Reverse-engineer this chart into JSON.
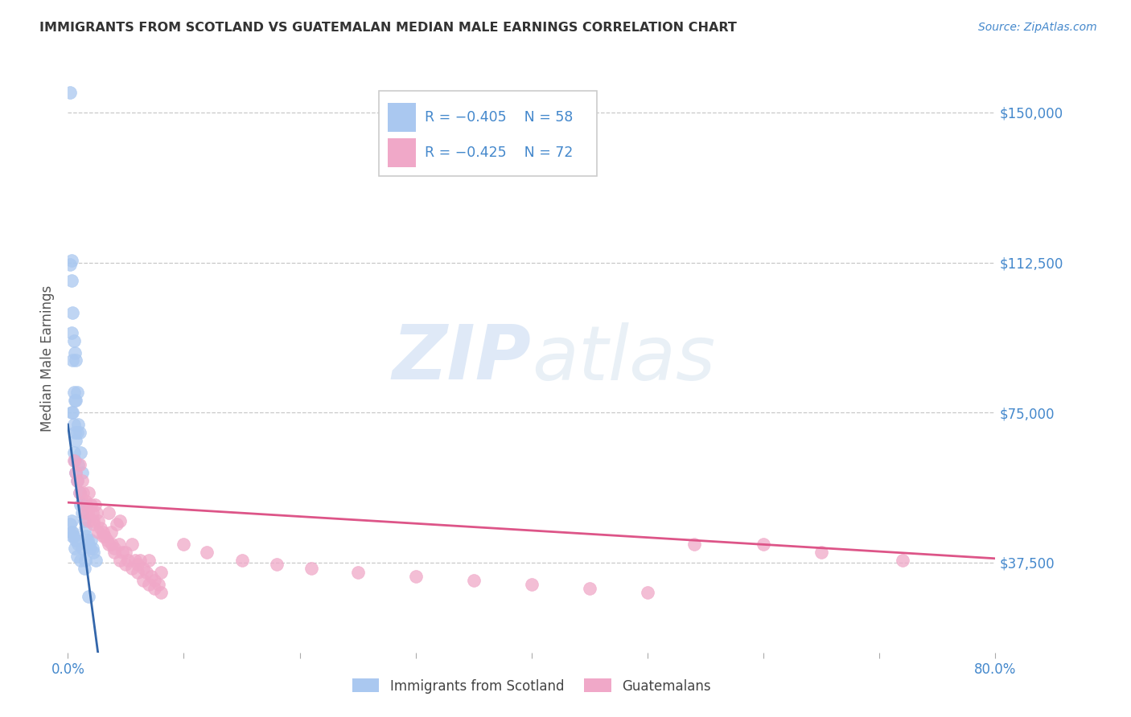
{
  "title": "IMMIGRANTS FROM SCOTLAND VS GUATEMALAN MEDIAN MALE EARNINGS CORRELATION CHART",
  "source": "Source: ZipAtlas.com",
  "ylabel": "Median Male Earnings",
  "ytick_labels": [
    "$37,500",
    "$75,000",
    "$112,500",
    "$150,000"
  ],
  "ytick_values": [
    37500,
    75000,
    112500,
    150000
  ],
  "xmin": 0.0,
  "xmax": 0.8,
  "ymin": 15000,
  "ymax": 162000,
  "legend_r1": "R = −0.405",
  "legend_n1": "N = 58",
  "legend_r2": "R = −0.425",
  "legend_n2": "N = 72",
  "color_scotland": "#aac8f0",
  "color_guatemalan": "#f0a8c8",
  "color_trendline_scotland_solid": "#3366aa",
  "color_trendline_scotland_dash": "#88aadd",
  "color_trendline_guatemalan": "#dd5588",
  "color_axis_labels": "#4488cc",
  "color_ylabel": "#555555",
  "color_title": "#333333",
  "background_color": "#ffffff",
  "grid_color": "#bbbbbb",
  "watermark_color": "#ccddf5",
  "scotland_x": [
    0.002,
    0.002,
    0.003,
    0.003,
    0.003,
    0.003,
    0.004,
    0.004,
    0.004,
    0.005,
    0.005,
    0.005,
    0.005,
    0.006,
    0.006,
    0.006,
    0.006,
    0.007,
    0.007,
    0.007,
    0.007,
    0.008,
    0.008,
    0.008,
    0.009,
    0.009,
    0.01,
    0.01,
    0.011,
    0.011,
    0.012,
    0.012,
    0.013,
    0.014,
    0.015,
    0.016,
    0.017,
    0.018,
    0.019,
    0.02,
    0.021,
    0.022,
    0.024,
    0.003,
    0.004,
    0.005,
    0.007,
    0.009,
    0.012,
    0.015,
    0.002,
    0.003,
    0.004,
    0.006,
    0.008,
    0.011,
    0.014,
    0.018
  ],
  "scotland_y": [
    155000,
    112000,
    113000,
    108000,
    95000,
    75000,
    100000,
    88000,
    75000,
    93000,
    80000,
    72000,
    65000,
    90000,
    78000,
    70000,
    63000,
    88000,
    78000,
    68000,
    60000,
    80000,
    70000,
    58000,
    72000,
    62000,
    70000,
    55000,
    65000,
    52000,
    60000,
    50000,
    52000,
    48000,
    46000,
    44000,
    43000,
    42000,
    41000,
    43000,
    41000,
    40000,
    38000,
    48000,
    45000,
    44000,
    43000,
    42000,
    41000,
    38000,
    47000,
    45000,
    44000,
    41000,
    39000,
    38000,
    36000,
    29000
  ],
  "guatemalan_x": [
    0.005,
    0.007,
    0.008,
    0.01,
    0.012,
    0.013,
    0.015,
    0.016,
    0.017,
    0.018,
    0.02,
    0.021,
    0.022,
    0.023,
    0.025,
    0.026,
    0.028,
    0.03,
    0.032,
    0.034,
    0.035,
    0.037,
    0.038,
    0.04,
    0.042,
    0.044,
    0.045,
    0.047,
    0.05,
    0.052,
    0.055,
    0.058,
    0.06,
    0.062,
    0.065,
    0.068,
    0.07,
    0.072,
    0.075,
    0.078,
    0.08,
    0.01,
    0.015,
    0.018,
    0.022,
    0.026,
    0.03,
    0.035,
    0.04,
    0.045,
    0.05,
    0.055,
    0.06,
    0.065,
    0.07,
    0.075,
    0.08,
    0.1,
    0.12,
    0.15,
    0.18,
    0.21,
    0.25,
    0.3,
    0.35,
    0.4,
    0.45,
    0.5,
    0.54,
    0.6,
    0.65,
    0.72
  ],
  "guatemalan_y": [
    63000,
    60000,
    58000,
    62000,
    58000,
    55000,
    53000,
    52000,
    50000,
    55000,
    52000,
    50000,
    48000,
    52000,
    50000,
    48000,
    46000,
    45000,
    44000,
    43000,
    50000,
    45000,
    42000,
    41000,
    47000,
    42000,
    48000,
    40000,
    40000,
    38000,
    42000,
    38000,
    37000,
    38000,
    36000,
    35000,
    38000,
    34000,
    33000,
    32000,
    35000,
    55000,
    50000,
    48000,
    47000,
    45000,
    44000,
    42000,
    40000,
    38000,
    37000,
    36000,
    35000,
    33000,
    32000,
    31000,
    30000,
    42000,
    40000,
    38000,
    37000,
    36000,
    35000,
    34000,
    33000,
    32000,
    31000,
    30000,
    42000,
    42000,
    40000,
    38000
  ]
}
